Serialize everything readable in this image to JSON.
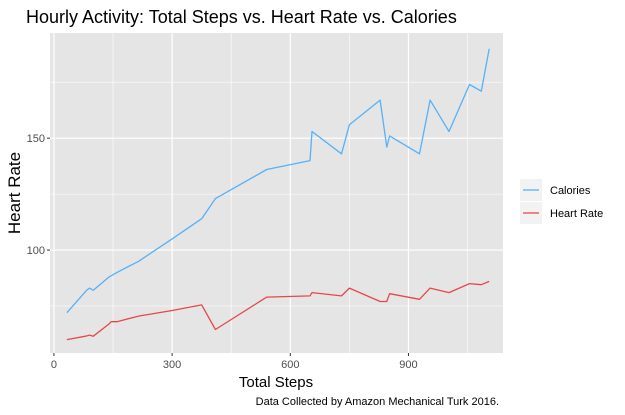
{
  "chart_data": {
    "type": "line",
    "title": "Hourly Activity: Total Steps vs. Heart Rate vs. Calories",
    "xlabel": "Total Steps",
    "ylabel": "Heart Rate",
    "caption": "Data Collected by Amazon Mechanical Turk 2016.",
    "xlim": [
      -10,
      1140
    ],
    "ylim": [
      54,
      197
    ],
    "x_ticks": [
      0,
      300,
      600,
      900
    ],
    "y_ticks": [
      100,
      150
    ],
    "grid": true,
    "legend_position": "right",
    "colors": {
      "panel_bg": "#e5e5e5",
      "grid": "#ffffff",
      "calories": "#56b1f7",
      "heart_rate": "#e8474a",
      "ylabel": "#e8474a"
    },
    "series": [
      {
        "name": "Calories",
        "x": [
          33,
          83,
          90,
          100,
          140,
          160,
          215,
          300,
          375,
          410,
          540,
          650,
          655,
          730,
          750,
          828,
          845,
          852,
          928,
          955,
          1003,
          1055,
          1085,
          1105
        ],
        "y": [
          72,
          82,
          83,
          82,
          88,
          90,
          95,
          105,
          114,
          123,
          136,
          140,
          153,
          143,
          156,
          167,
          146,
          151,
          143,
          167,
          153,
          174,
          171,
          190
        ]
      },
      {
        "name": "Heart Rate",
        "x": [
          33,
          80,
          90,
          100,
          140,
          145,
          160,
          215,
          300,
          375,
          410,
          540,
          650,
          655,
          730,
          750,
          828,
          845,
          852,
          928,
          955,
          1003,
          1055,
          1085,
          1105
        ],
        "y": [
          60,
          61.5,
          62,
          61.5,
          67,
          68,
          68,
          70.5,
          73,
          75.5,
          64.5,
          79,
          79.5,
          81,
          79.5,
          83,
          77,
          77,
          80.5,
          78,
          83,
          81,
          85,
          84.5,
          86
        ]
      }
    ]
  }
}
